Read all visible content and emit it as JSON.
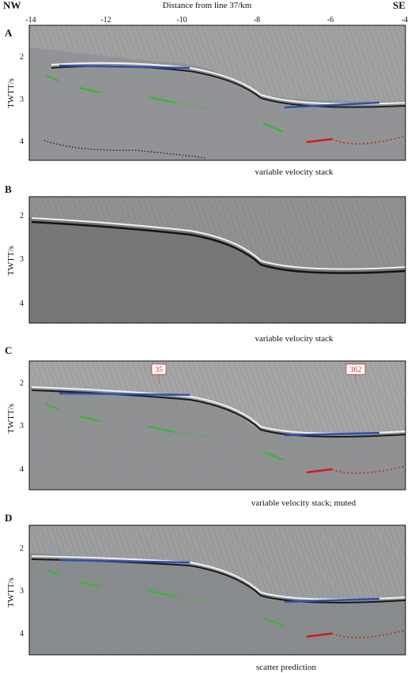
{
  "header": {
    "left_label": "NW",
    "right_label": "SE",
    "axis_title": "Distance from line 37/km",
    "ticks": [
      "-14",
      "-12",
      "-10",
      "-8",
      "-6",
      "-4"
    ]
  },
  "panels": [
    {
      "letter": "A",
      "ylabel": "TWTT/s",
      "yticks": [
        "2",
        "3",
        "4"
      ],
      "caption": "variable velocity stack",
      "background": "#9fa1a3",
      "picks": true,
      "dotted_black": true
    },
    {
      "letter": "B",
      "ylabel": "TWTT/s",
      "yticks": [
        "2",
        "3",
        "4"
      ],
      "caption": "variable velocity stack",
      "background": "#8f9193",
      "picks": false,
      "dotted_black": false
    },
    {
      "letter": "C",
      "ylabel": "TWTT/s",
      "yticks": [
        "2",
        "3",
        "4"
      ],
      "caption": "variable velocity stack; muted",
      "background": "#a3a5a7",
      "picks": true,
      "dotted_black": false,
      "markers": [
        "35",
        "362"
      ]
    },
    {
      "letter": "D",
      "ylabel": "TWTT/s",
      "yticks": [
        "2",
        "3",
        "4"
      ],
      "caption": "scatter prediction",
      "background": "#9c9ea0",
      "picks": true,
      "dotted_black": false
    }
  ],
  "colors": {
    "blue_pick": "#2f4fb0",
    "green_pick": "#3cb43c",
    "red_pick": "#d11a1a",
    "marker_red": "#c0392b"
  }
}
